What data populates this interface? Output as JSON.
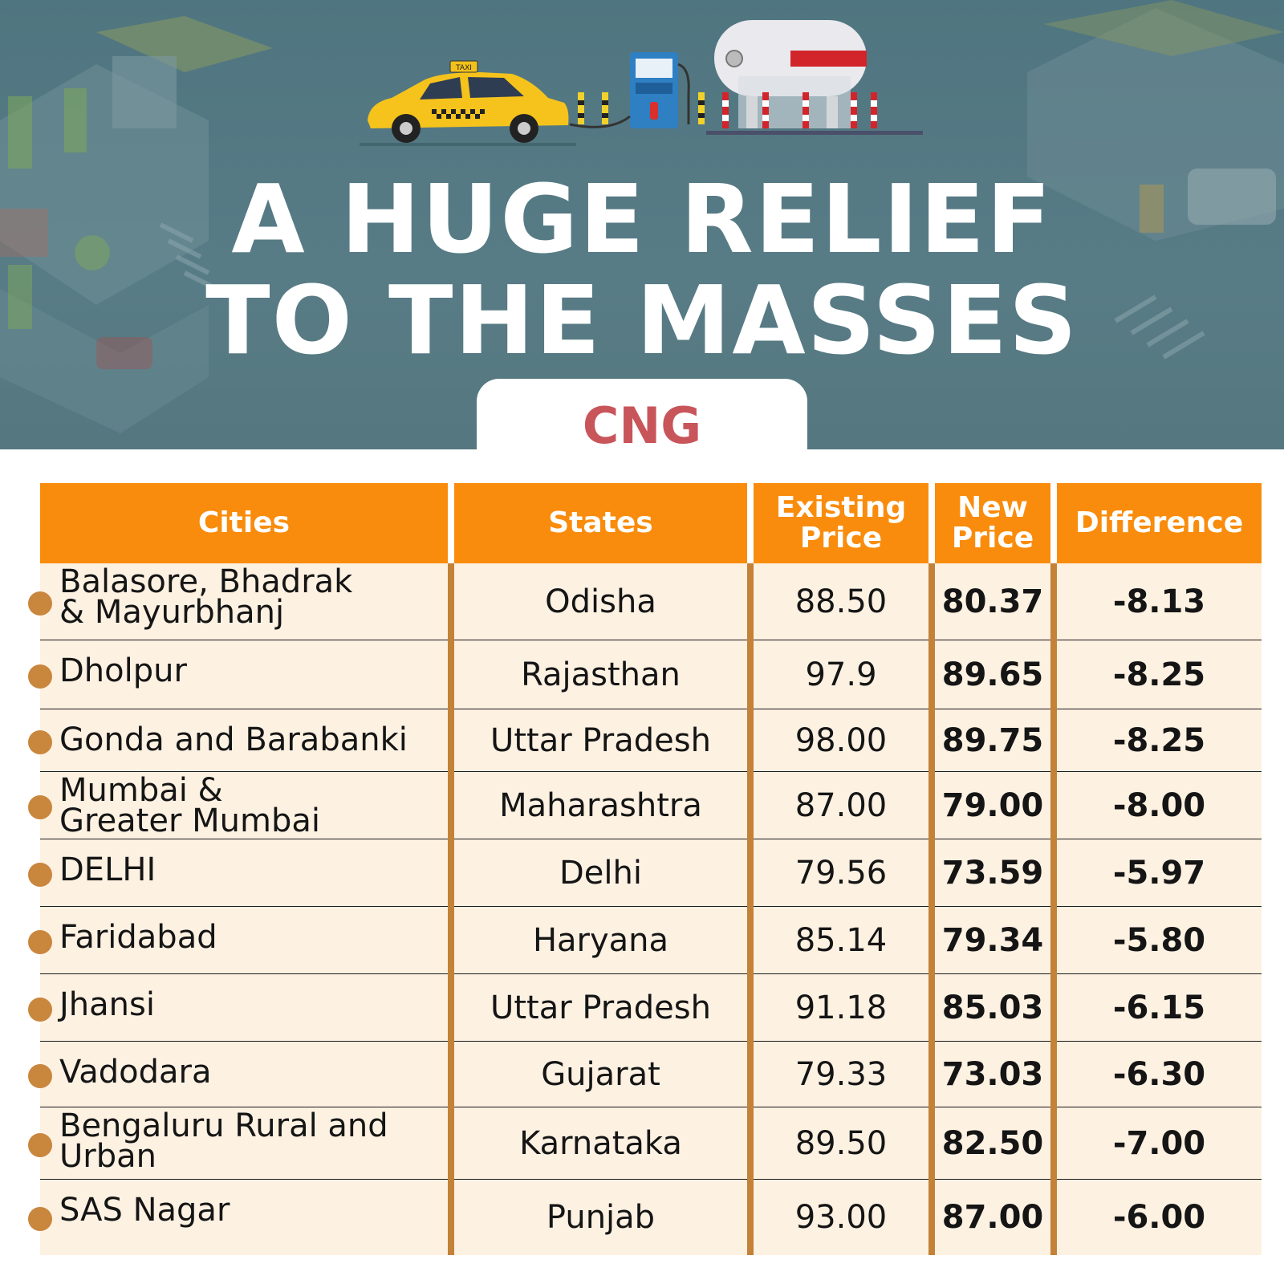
{
  "header": {
    "title_line1": "A HUGE RELIEF",
    "title_line2": "TO THE MASSES",
    "taxi_sign": "TAXI",
    "fuel": "CNG"
  },
  "table": {
    "columns": [
      "Cities",
      "States",
      "Existing\nPrice",
      "New\nPrice",
      "Difference"
    ],
    "rows": [
      {
        "city": "Balasore, Bhadrak\n& Mayurbhanj",
        "state": "Odisha",
        "existing": "88.50",
        "new": "80.37",
        "difference": "-8.13"
      },
      {
        "city": "Dholpur",
        "state": "Rajasthan",
        "existing": "97.9",
        "new": "89.65",
        "difference": "-8.25"
      },
      {
        "city": "Gonda and Barabanki",
        "state": "Uttar Pradesh",
        "existing": "98.00",
        "new": "89.75",
        "difference": "-8.25"
      },
      {
        "city": "Mumbai &\nGreater Mumbai",
        "state": "Maharashtra",
        "existing": "87.00",
        "new": "79.00",
        "difference": "-8.00"
      },
      {
        "city": "DELHI",
        "state": "Delhi",
        "existing": "79.56",
        "new": "73.59",
        "difference": "-5.97"
      },
      {
        "city": "Faridabad",
        "state": "Haryana",
        "existing": "85.14",
        "new": "79.34",
        "difference": "-5.80"
      },
      {
        "city": "Jhansi",
        "state": "Uttar Pradesh",
        "existing": "91.18",
        "new": "85.03",
        "difference": "-6.15"
      },
      {
        "city": "Vadodara",
        "state": "Gujarat",
        "existing": "79.33",
        "new": "73.03",
        "difference": "-6.30"
      },
      {
        "city": "Bengaluru Rural and\nUrban",
        "state": "Karnataka",
        "existing": "89.50",
        "new": "82.50",
        "difference": "-7.00"
      },
      {
        "city": "SAS Nagar",
        "state": "Punjab",
        "existing": "93.00",
        "new": "87.00",
        "difference": "-6.00"
      }
    ]
  },
  "colors": {
    "header_bg": "#f98c0c",
    "row_bg": "#fdf1e2",
    "separator": "#c38238",
    "bullet": "#c9863d",
    "cng_text": "#c8555a",
    "hero_bg": "#587c86"
  },
  "icons": [
    "taxi-illustration",
    "fuel-dispenser-illustration",
    "gas-tank-illustration",
    "city-background-illustration"
  ]
}
